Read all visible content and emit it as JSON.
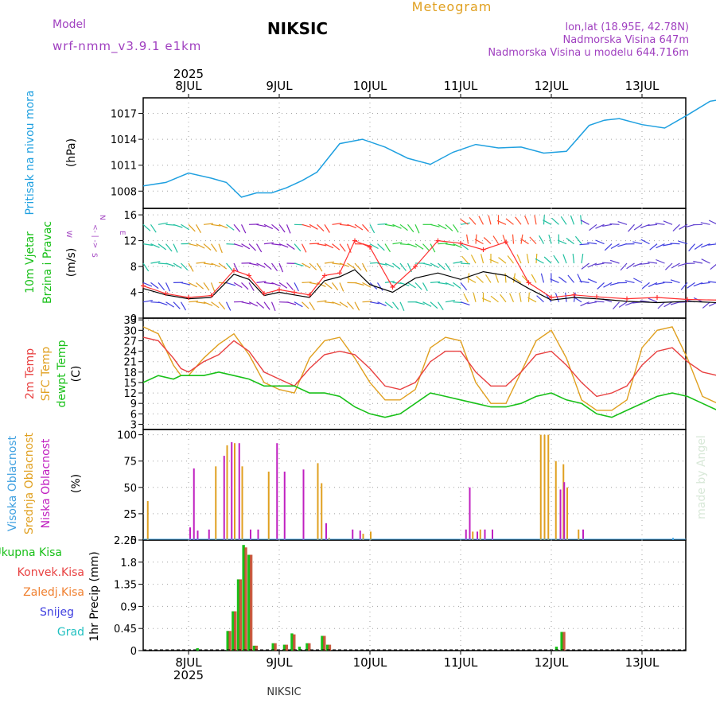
{
  "header": {
    "model_label": "Model",
    "model_name": "wrf-nmm_v3.9.1 e1km",
    "station": "NIKSIC",
    "product": "Meteogram",
    "coords": "lon,lat (18.95E, 42.78N)",
    "elevation": "Nadmorska Visina 647m",
    "model_elevation": "Nadmorska Visina u modelu 644.716m",
    "footer_station": "NIKSIC",
    "credit": "made by Angel"
  },
  "colors": {
    "pressure": "#1fa0e0",
    "temp2m": "#e84040",
    "sfc_temp": "#e0a020",
    "dewpoint": "#18c018",
    "wind_speed": "#000000",
    "gust": "#ff3030",
    "high_cloud": "#3fa0e0",
    "mid_cloud": "#e0a020",
    "low_cloud": "#c020c0",
    "total_precip": "#18c018",
    "conv_precip": "#e84040",
    "freezing": "#f08030",
    "snow": "#4040e0",
    "hail": "#20c0c0",
    "header_purple": "#a040c0"
  },
  "time_axis": {
    "year": "2025",
    "days": [
      "8JUL",
      "9JUL",
      "10JUL",
      "11JUL",
      "12JUL",
      "13JUL"
    ]
  },
  "panels": {
    "pressure": {
      "label": "Pritisak na nivou mora",
      "unit": "(hPa)"
    },
    "wind": {
      "label1": "10m Vjetar",
      "label2": "Brzina i Pravac",
      "unit": "(m/s)",
      "compass": [
        "N",
        "E",
        "S",
        "W"
      ],
      "compass_hint": "<- | ->"
    },
    "temp": {
      "label1": "2m Temp",
      "label2": "SFC Temp",
      "label3": "dewpt Temp",
      "unit": "(C)"
    },
    "cloud": {
      "label1": "Visoka Oblacnost",
      "label2": "Srednja Oblacnost",
      "label3": "Niska Oblacnost",
      "unit": "(%)"
    },
    "precip": {
      "legend": [
        "Ukupna Kisa",
        "Konvek.Kisa",
        "Zaledj.Kisa",
        "Snijeg",
        "Grad"
      ],
      "unit": "1hr Precip (mm)"
    }
  },
  "chart_data": [
    {
      "type": "line",
      "title": "Pritisak na nivou mora",
      "ylabel": "(hPa)",
      "ylim": [
        1006,
        1018.8
      ],
      "yticks": [
        1008,
        1011,
        1014,
        1017
      ],
      "x_hours": [
        0,
        6,
        12,
        18,
        22,
        26,
        30,
        34,
        38,
        42,
        46,
        52,
        58,
        64,
        70,
        76,
        82,
        88,
        94,
        100,
        106,
        112,
        118,
        122,
        126,
        132,
        138,
        144,
        150,
        156,
        160,
        164,
        168
      ],
      "series": [
        {
          "values": [
            1008.6,
            1009.0,
            1010.1,
            1009.5,
            1009.0,
            1007.3,
            1007.8,
            1007.8,
            1008.4,
            1009.2,
            1010.2,
            1013.5,
            1014.0,
            1013.1,
            1011.8,
            1011.1,
            1012.5,
            1013.4,
            1013.0,
            1013.1,
            1012.4,
            1012.6,
            1015.6,
            1016.2,
            1016.4,
            1015.7,
            1015.3,
            1016.8,
            1018.4,
            1018.8,
            1018.6,
            1017.8,
            1016.9
          ]
        }
      ]
    },
    {
      "type": "line",
      "title": "10m Vjetar Brzina i Pravac",
      "ylabel": "(m/s)",
      "ylim": [
        0,
        17
      ],
      "yticks": [
        0,
        4,
        8,
        12,
        16
      ],
      "x_hours": [
        0,
        6,
        12,
        18,
        24,
        28,
        32,
        36,
        40,
        44,
        48,
        52,
        56,
        60,
        66,
        72,
        78,
        84,
        90,
        96,
        102,
        108,
        114,
        120,
        128,
        136,
        144,
        152,
        160,
        168
      ],
      "series": [
        {
          "name": "speed",
          "values": [
            4.6,
            3.6,
            3.0,
            3.2,
            6.8,
            6.0,
            3.5,
            4.0,
            3.6,
            3.2,
            5.8,
            6.4,
            7.5,
            5.2,
            4.0,
            6.2,
            7.0,
            6.0,
            7.2,
            6.6,
            4.6,
            2.8,
            3.2,
            3.0,
            2.6,
            2.4,
            2.6,
            2.4,
            2.2,
            2.2
          ]
        },
        {
          "name": "gust",
          "values": [
            5.0,
            3.8,
            3.2,
            3.5,
            7.4,
            6.6,
            3.8,
            4.4,
            4.0,
            3.6,
            6.6,
            7.0,
            12.0,
            11.0,
            4.8,
            8.0,
            12.0,
            11.6,
            10.6,
            11.8,
            5.5,
            3.2,
            3.6,
            3.3,
            3.0,
            3.2,
            2.9,
            2.8,
            2.4,
            2.4
          ]
        }
      ]
    },
    {
      "type": "line",
      "title": "2m Temp / SFC Temp / dewpt Temp",
      "ylabel": "(C)",
      "ylim": [
        1.5,
        33.5
      ],
      "yticks": [
        3,
        6,
        9,
        12,
        15,
        18,
        21,
        24,
        27,
        30,
        33
      ],
      "x_hours": [
        0,
        4,
        8,
        10,
        12,
        16,
        20,
        24,
        28,
        32,
        36,
        40,
        44,
        48,
        52,
        56,
        60,
        64,
        68,
        72,
        76,
        80,
        84,
        88,
        92,
        96,
        100,
        104,
        108,
        112,
        116,
        120,
        124,
        128,
        132,
        136,
        140,
        144,
        148,
        152,
        156,
        160,
        164,
        168
      ],
      "series": [
        {
          "name": "2m Temp",
          "values": [
            28,
            27,
            22,
            19,
            18,
            21,
            23,
            27,
            24,
            18,
            16,
            14,
            19,
            23,
            24,
            23,
            19,
            14,
            13,
            15,
            21,
            24,
            24,
            18,
            14,
            14,
            18,
            23,
            24,
            20,
            15,
            11,
            12,
            14,
            20,
            24,
            25,
            21,
            18,
            17,
            17,
            21,
            26,
            28
          ]
        },
        {
          "name": "SFC Temp",
          "values": [
            31,
            29,
            20,
            17,
            17,
            22,
            26,
            29,
            23,
            15,
            13,
            12,
            22,
            27,
            28,
            22,
            15,
            10,
            10,
            13,
            25,
            28,
            27,
            15,
            9,
            9,
            18,
            27,
            30,
            22,
            10,
            7,
            7,
            10,
            25,
            30,
            31,
            22,
            11,
            9,
            9,
            25,
            31,
            33
          ]
        },
        {
          "name": "dewpt Temp",
          "values": [
            15,
            17,
            16,
            17,
            17,
            17,
            18,
            17,
            16,
            14,
            14,
            14,
            12,
            12,
            11,
            8,
            6,
            5,
            6,
            9,
            12,
            11,
            10,
            9,
            8,
            8,
            9,
            11,
            12,
            10,
            9,
            6,
            5,
            7,
            9,
            11,
            12,
            11,
            9,
            7,
            6,
            7,
            10,
            13
          ]
        }
      ]
    },
    {
      "type": "bar",
      "title": "Visoka / Srednja / Niska Oblacnost",
      "ylabel": "(%)",
      "ylim": [
        0,
        105
      ],
      "yticks": [
        0,
        25,
        50,
        75,
        100
      ],
      "series": [
        {
          "name": "Srednja Oblacnost",
          "points": [
            [
              1,
              37
            ],
            [
              19,
              70
            ],
            [
              22,
              90
            ],
            [
              24,
              92
            ],
            [
              26,
              70
            ],
            [
              33,
              65
            ],
            [
              46,
              73
            ],
            [
              47,
              54
            ],
            [
              49,
              2
            ],
            [
              58,
              6
            ],
            [
              60,
              8
            ],
            [
              87,
              8
            ],
            [
              89,
              10
            ],
            [
              105,
              100
            ],
            [
              106,
              100
            ],
            [
              107,
              100
            ],
            [
              109,
              75
            ],
            [
              111,
              72
            ],
            [
              112,
              50
            ],
            [
              115,
              10
            ]
          ]
        },
        {
          "name": "Niska Oblacnost",
          "points": [
            [
              12,
              12
            ],
            [
              13,
              68
            ],
            [
              14,
              9
            ],
            [
              17,
              10
            ],
            [
              21,
              80
            ],
            [
              23,
              93
            ],
            [
              25,
              92
            ],
            [
              28,
              10
            ],
            [
              30,
              10
            ],
            [
              35,
              92
            ],
            [
              37,
              65
            ],
            [
              42,
              67
            ],
            [
              48,
              16
            ],
            [
              55,
              10
            ],
            [
              57,
              9
            ],
            [
              85,
              10
            ],
            [
              86,
              50
            ],
            [
              88,
              8
            ],
            [
              90,
              10
            ],
            [
              92,
              10
            ],
            [
              110,
              48
            ],
            [
              111,
              55
            ],
            [
              116,
              10
            ]
          ]
        },
        {
          "name": "Visoka Oblacnost",
          "points": [
            [
              140,
              2
            ]
          ]
        }
      ]
    },
    {
      "type": "bar",
      "title": "1hr Precip",
      "ylabel": "1hr Precip (mm)",
      "ylim": [
        0,
        2.25
      ],
      "yticks": [
        0,
        0.45,
        0.9,
        1.35,
        1.8,
        2.25
      ],
      "series": [
        {
          "name": "Ukupna Kisa",
          "points": [
            [
              14,
              0.05
            ],
            [
              22,
              0.4
            ],
            [
              23.4,
              0.8
            ],
            [
              24.8,
              1.45
            ],
            [
              26.2,
              2.15
            ],
            [
              27.6,
              1.95
            ],
            [
              29,
              0.1
            ],
            [
              34,
              0.15
            ],
            [
              37,
              0.12
            ],
            [
              39,
              0.35
            ],
            [
              41,
              0.08
            ],
            [
              43,
              0.15
            ],
            [
              47,
              0.3
            ],
            [
              48.4,
              0.12
            ],
            [
              109,
              0.08
            ],
            [
              110.4,
              0.38
            ]
          ]
        },
        {
          "name": "Konvek.Kisa",
          "points": [
            [
              22.6,
              0.4
            ],
            [
              24,
              0.8
            ],
            [
              25.4,
              1.45
            ],
            [
              26.8,
              2.1
            ],
            [
              28.2,
              1.95
            ],
            [
              29.6,
              0.1
            ],
            [
              34.6,
              0.15
            ],
            [
              37.6,
              0.12
            ],
            [
              39.6,
              0.33
            ],
            [
              43.6,
              0.15
            ],
            [
              47.6,
              0.3
            ],
            [
              49,
              0.12
            ],
            [
              111,
              0.38
            ]
          ]
        }
      ]
    }
  ]
}
